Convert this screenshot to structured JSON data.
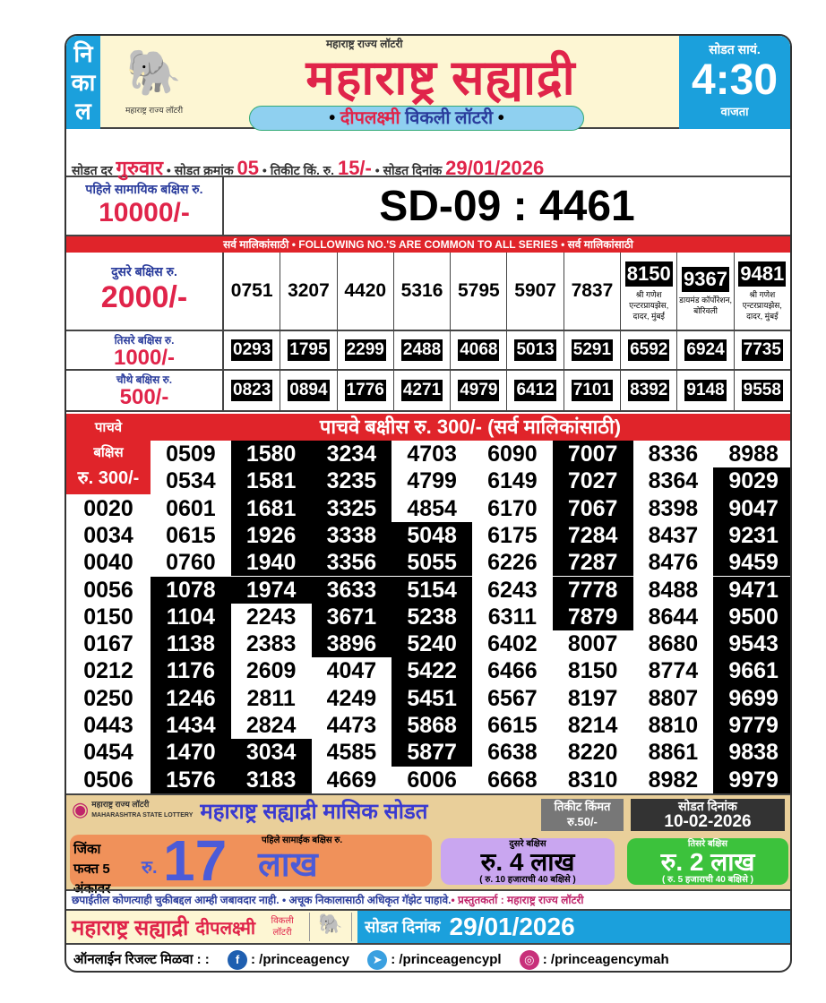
{
  "header": {
    "nikal": [
      "नि",
      "का",
      "ल"
    ],
    "small_title": "महाराष्ट्र राज्य लॉटरी",
    "title": "महाराष्ट्र सह्याद्री",
    "logo_caption": "महाराष्ट्र राज्य लॉटरी",
    "subtitle_red": "दीपलक्ष्मी",
    "subtitle_blue": "विकली लॉटरी",
    "time_label": "सोडत सायं.",
    "time": "4:30",
    "time_suffix": "वाजता"
  },
  "info": {
    "day_label": "सोडत दर",
    "day": "गुरुवार",
    "draw_label": "सोडत क्रमांक",
    "draw_no": "05",
    "price_label": "तिकीट किं. रु.",
    "price": "15/-",
    "date_label": "सोडत दिनांक",
    "date": "29/01/2026"
  },
  "first_prize": {
    "label": "पहिले सामायिक बक्षिस रु.",
    "amount": "10000/-",
    "number": "SD-09 : 4461"
  },
  "common_strip": "सर्व मालिकांसाठी  •  FOLLOWING NO.'S ARE COMMON TO ALL SERIES  •  सर्व मालिकांसाठी",
  "second_prize": {
    "label": "दुसरे बक्षिस रु.",
    "amount": "2000/-",
    "numbers": [
      {
        "n": "0751"
      },
      {
        "n": "3207"
      },
      {
        "n": "4420"
      },
      {
        "n": "5316"
      },
      {
        "n": "5795"
      },
      {
        "n": "5907"
      },
      {
        "n": "7837"
      },
      {
        "n": "8150",
        "agent": "श्री गणेश एन्टरप्रायझेस, दादर, मुंबई"
      },
      {
        "n": "9367",
        "agent": "डायमंड कॉर्पोरेशन, बोरिवली"
      },
      {
        "n": "9481",
        "agent": "श्री गणेश एन्टरप्रायझेस, दादर, मुंबई"
      }
    ]
  },
  "third_prize": {
    "label": "तिसरे बक्षिस रु.",
    "amount": "1000/-",
    "numbers": [
      "0293",
      "1795",
      "2299",
      "2488",
      "4068",
      "5013",
      "5291",
      "6592",
      "6924",
      "7735"
    ]
  },
  "fourth_prize": {
    "label": "चौथे बक्षिस रु.",
    "amount": "500/-",
    "numbers": [
      "0823",
      "0894",
      "1776",
      "4271",
      "4979",
      "6412",
      "7101",
      "8392",
      "9148",
      "9558"
    ]
  },
  "fifth_prize": {
    "header": "पाचवे बक्षीस रु. 300/- (सर्व मालिकांसाठी)",
    "label": [
      "पाचवे",
      "बक्षिस",
      "रु. 300/-"
    ],
    "columns": [
      {
        "values": [
          "0020",
          "0034",
          "0040",
          "0056",
          "0150",
          "0167",
          "0212",
          "0250",
          "0443",
          "0454",
          "0506"
        ],
        "highlight": []
      },
      {
        "values": [
          "0509",
          "0534",
          "0601",
          "0615",
          "0760",
          "1078",
          "1104",
          "1138",
          "1176",
          "1246",
          "1434",
          "1470",
          "1576"
        ],
        "highlight": [
          [
            5,
            12
          ]
        ]
      },
      {
        "values": [
          "1580",
          "1581",
          "1681",
          "1926",
          "1940",
          "1974",
          "2243",
          "2383",
          "2609",
          "2811",
          "2824",
          "3034",
          "3183"
        ],
        "highlight": [
          [
            0,
            5
          ],
          [
            11,
            12
          ]
        ]
      },
      {
        "values": [
          "3234",
          "3235",
          "3325",
          "3338",
          "3356",
          "3633",
          "3671",
          "3896",
          "4047",
          "4249",
          "4473",
          "4585",
          "4669"
        ],
        "highlight": [
          [
            0,
            7
          ]
        ]
      },
      {
        "values": [
          "4703",
          "4799",
          "4854",
          "5048",
          "5055",
          "5154",
          "5238",
          "5240",
          "5422",
          "5451",
          "5868",
          "5877",
          "6006"
        ],
        "highlight": [
          [
            3,
            11
          ]
        ]
      },
      {
        "values": [
          "6090",
          "6149",
          "6170",
          "6175",
          "6226",
          "6243",
          "6311",
          "6402",
          "6466",
          "6567",
          "6615",
          "6638",
          "6668"
        ],
        "highlight": []
      },
      {
        "values": [
          "7007",
          "7027",
          "7067",
          "7284",
          "7287",
          "7778",
          "7879",
          "8007",
          "8150",
          "8197",
          "8214",
          "8220",
          "8310"
        ],
        "highlight": [
          [
            0,
            6
          ]
        ]
      },
      {
        "values": [
          "8336",
          "8364",
          "8398",
          "8437",
          "8476",
          "8488",
          "8644",
          "8680",
          "8774",
          "8807",
          "8810",
          "8861",
          "8982"
        ],
        "highlight": []
      },
      {
        "values": [
          "8988",
          "9029",
          "9047",
          "9231",
          "9459",
          "9471",
          "9500",
          "9543",
          "9661",
          "9699",
          "9779",
          "9838",
          "9979"
        ],
        "highlight": [
          [
            1,
            12
          ]
        ]
      }
    ]
  },
  "monthly": {
    "logo_text": "महाराष्ट्र राज्य लॉटरी",
    "logo_text_en": "MAHARASHTRA STATE LOTTERY",
    "title": "महाराष्ट्र सह्याद्री मासिक सोडत",
    "price_label": "तिकीट किंमत",
    "price": "रु.50/-",
    "date_label": "सोडत दिनांक",
    "date": "10-02-2026",
    "first": {
      "win": "जिंका फक्त 5 अंकावर",
      "ru": "रु.",
      "num": "17",
      "caption": "पहिले सामाईक बक्षिस रु.",
      "unit": "लाख"
    },
    "second": {
      "caption": "दुसरे बक्षिस",
      "amount": "रु. 4 लाख",
      "detail": "( रु. 10 हजाराची 40 बक्षिसे )"
    },
    "third": {
      "caption": "तिसरे बक्षिस",
      "amount": "रु. 2 लाख",
      "detail": "( रु. 5 हजाराची 40 बक्षिसे )"
    }
  },
  "disclaimer": {
    "a": "छपाईतील कोणत्याही चुकीबद्दल आम्ही जबावदार नाही. • अचूक निकालासाठी अधिकृत गॅझेट पाहावे.",
    "b": "• प्रस्तुतकर्ता : महाराष्ट्र राज्य लॉटरी"
  },
  "footer": {
    "title": "महाराष्ट्र सह्याद्री",
    "sub": "दीपलक्ष्मी",
    "weekly": "विकली लॉटरी",
    "date_label": "सोडत दिनांक",
    "date": "29/01/2026"
  },
  "social": {
    "label": "ऑनलाईन रिजल्ट मिळवा : :",
    "facebook": ": /princeagency",
    "telegram": ": /princeagencypl",
    "instagram": ": /princeagencymah",
    "colors": {
      "facebook": "#1f5fb0",
      "telegram": "#3aa0e0",
      "instagram": "#c8307a"
    }
  }
}
